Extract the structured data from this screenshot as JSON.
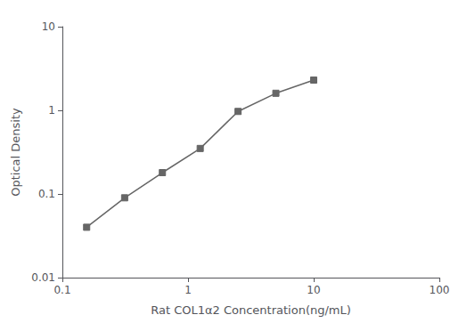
{
  "chart_data": {
    "type": "line",
    "x": [
      0.156,
      0.313,
      0.625,
      1.25,
      2.5,
      5.0,
      10.0
    ],
    "values": [
      0.04,
      0.09,
      0.18,
      0.35,
      0.97,
      1.6,
      2.3
    ],
    "xlabel": "Rat COL1α2 Concentration(ng/mL)",
    "ylabel": "Optical Density",
    "xlim": [
      0.1,
      100
    ],
    "ylim": [
      0.01,
      10
    ],
    "xticks": [
      0.1,
      1,
      10,
      100
    ],
    "yticks": [
      0.01,
      0.1,
      1,
      10
    ],
    "log": true,
    "grid": false,
    "color": "#666666",
    "marker": "square"
  }
}
